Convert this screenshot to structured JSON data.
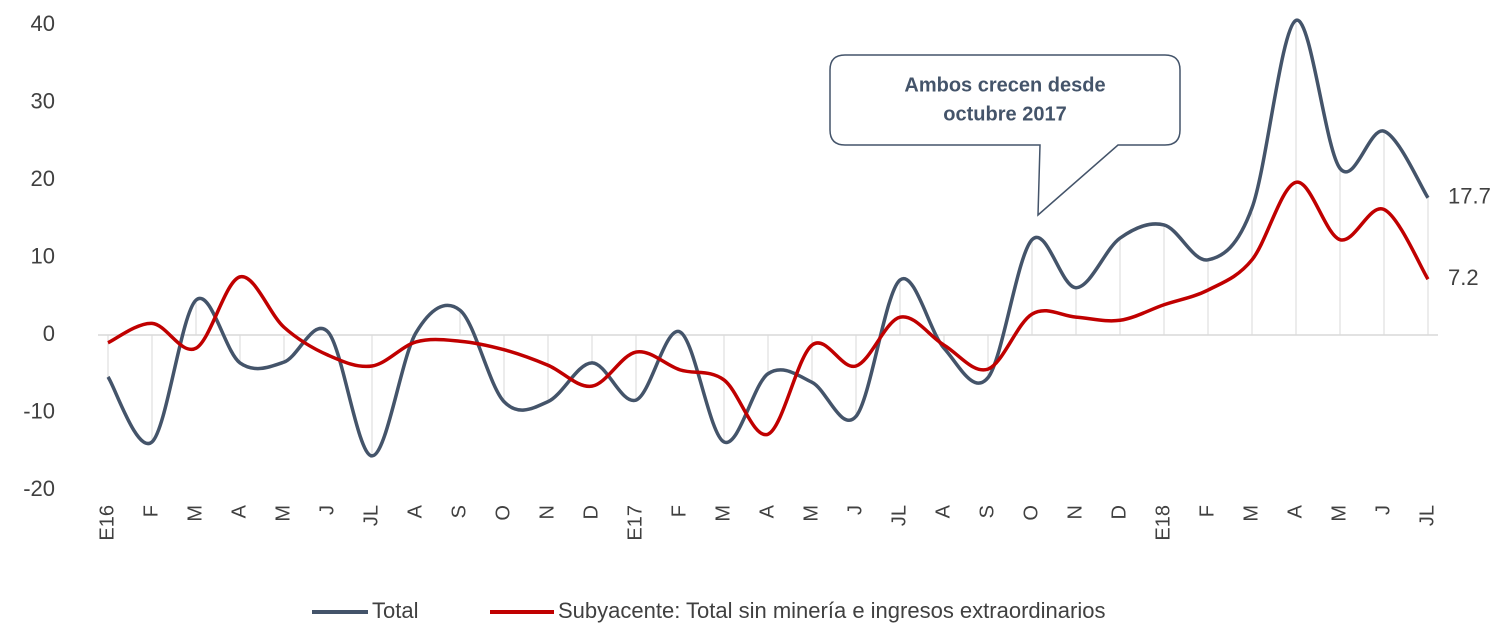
{
  "chart_data": {
    "type": "line",
    "categories": [
      "E16",
      "F",
      "M",
      "A",
      "M",
      "J",
      "JL",
      "A",
      "S",
      "O",
      "N",
      "D",
      "E17",
      "F",
      "M",
      "A",
      "M",
      "J",
      "JL",
      "A",
      "S",
      "O",
      "N",
      "D",
      "E18",
      "F",
      "M",
      "A",
      "M",
      "J",
      "JL"
    ],
    "series": [
      {
        "name": "Total",
        "color": "#44546a",
        "values": [
          -5.4,
          -13.8,
          4.5,
          -3.6,
          -3.5,
          0.4,
          -15.6,
          0.3,
          3.2,
          -8.6,
          -8.6,
          -3.6,
          -8.4,
          0.4,
          -13.8,
          -5,
          -6.1,
          -10.5,
          7.1,
          -1.7,
          -5.5,
          12.3,
          6.1,
          12.5,
          14.2,
          9.7,
          16.4,
          40.6,
          21.5,
          26.3,
          17.7
        ]
      },
      {
        "name": "Subyacente: Total sin minería e ingresos extraordinarios",
        "color": "#c00000",
        "values": [
          -1,
          1.5,
          -1.7,
          7.5,
          1,
          -2.6,
          -4,
          -0.9,
          -0.8,
          -1.9,
          -3.9,
          -6.6,
          -2.2,
          -4.5,
          -5.8,
          -12.8,
          -1.3,
          -4,
          2.3,
          -1.3,
          -4.4,
          2.7,
          2.3,
          1.9,
          3.9,
          5.8,
          9.7,
          19.7,
          12.3,
          16.2,
          7.2
        ]
      }
    ],
    "ylim": [
      -20,
      40
    ],
    "yticks": [
      -20,
      -10,
      0,
      10,
      20,
      30,
      40
    ],
    "annotation": [
      "Ambos crecen desde",
      "octubre 2017"
    ],
    "drop_lines": true
  }
}
